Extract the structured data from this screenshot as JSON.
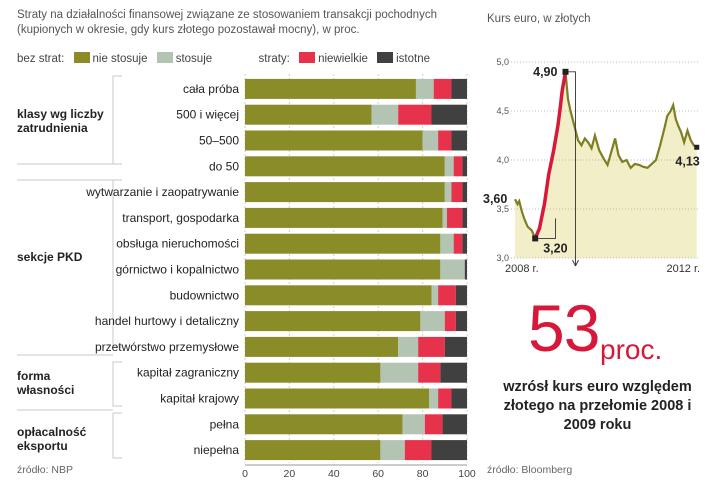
{
  "intro": "Straty na działalności finansowej związane ze stosowaniem transakcji pochodnych (kupionych w okresie, gdy kurs złotego pozostawał mocny), w proc.",
  "legend": {
    "no_loss_label": "bez strat:",
    "not_used": "nie stosuje",
    "used": "stosuje",
    "loss_label": "straty:",
    "small": "niewielkie",
    "significant": "istotne"
  },
  "colors": {
    "not_used": "#8a8c28",
    "used": "#b4c4b2",
    "small": "#e6324b",
    "significant": "#404040",
    "eur_line_green": "#7c7f22",
    "eur_line_red": "#d6193a",
    "eur_fill": "#ece7b0",
    "accent": "#d6193a"
  },
  "groups": [
    {
      "label": "klasy wg liczby zatrudnienia"
    },
    {
      "label": "sekcje PKD"
    },
    {
      "label": "forma własności"
    },
    {
      "label": "opłacalność eksportu"
    }
  ],
  "chart_data": [
    {
      "type": "bar",
      "stacked": true,
      "orientation": "horizontal",
      "title": "Straty na działalności finansowej związane ze stosowaniem transakcji pochodnych (kupionych w okresie, gdy kurs złotego pozostawał mocny), w proc.",
      "xlim": [
        0,
        100
      ],
      "xticks": [
        0,
        20,
        40,
        60,
        80,
        100
      ],
      "categories": [
        "cała próba",
        "500 i więcej",
        "50–500",
        "do 50",
        "wytwarzanie i zaopatrywanie",
        "transport, gospodarka",
        "obsługa nieruchomości",
        "górnictwo i kopalnictwo",
        "budownictwo",
        "handel hurtowy i detaliczny",
        "przetwórstwo przemysłowe",
        "kapitał zagraniczny",
        "kapitał krajowy",
        "pełna",
        "niepełna"
      ],
      "series": [
        {
          "name": "nie stosuje",
          "values": [
            77,
            57,
            80,
            90,
            90,
            89,
            88,
            88,
            84,
            79,
            69,
            61,
            83,
            71,
            61
          ]
        },
        {
          "name": "stosuje",
          "values": [
            8,
            12,
            7,
            4,
            3,
            2,
            6,
            11,
            3,
            11,
            9,
            17,
            4,
            10,
            11
          ]
        },
        {
          "name": "niewielkie",
          "values": [
            8,
            15,
            6,
            4,
            5,
            7,
            4,
            0,
            8,
            5,
            12,
            10,
            6,
            8,
            12
          ]
        },
        {
          "name": "istotne",
          "values": [
            7,
            16,
            7,
            2,
            2,
            2,
            2,
            1,
            5,
            5,
            10,
            12,
            7,
            11,
            16
          ]
        }
      ],
      "groups": [
        {
          "label": "klasy wg liczby zatrudnienia",
          "from": 0,
          "to": 3
        },
        {
          "label": "sekcje PKD",
          "from": 4,
          "to": 10
        },
        {
          "label": "forma własności",
          "from": 11,
          "to": 12
        },
        {
          "label": "opłacalność eksportu",
          "from": 13,
          "to": 14
        }
      ],
      "source": "źródło: NBP"
    },
    {
      "type": "line",
      "title": "Kurs euro, w złotych",
      "ylim": [
        3.0,
        5.0
      ],
      "yticks": [
        "3,0",
        "3,5",
        "4,0",
        "4,5",
        "5,0"
      ],
      "xticks": [
        "2008 r.",
        "2012 r."
      ],
      "x": [
        2008.0,
        2008.06,
        2008.1,
        2008.16,
        2008.22,
        2008.3,
        2008.4,
        2008.48,
        2008.58,
        2008.7,
        2008.8,
        2008.92,
        2009.02,
        2009.08,
        2009.12,
        2009.16,
        2009.2,
        2009.26,
        2009.32,
        2009.38,
        2009.44,
        2009.5,
        2009.58,
        2009.66,
        2009.74,
        2009.82,
        2009.9,
        2010.0,
        2010.1,
        2010.2,
        2010.3,
        2010.38,
        2010.46,
        2010.55,
        2010.65,
        2010.75,
        2010.85,
        2010.95,
        2011.05,
        2011.15,
        2011.25,
        2011.35,
        2011.45,
        2011.55,
        2011.62,
        2011.7,
        2011.76,
        2011.82,
        2011.88,
        2011.95,
        2012.02,
        2012.1,
        2012.18,
        2012.25,
        2012.32
      ],
      "y": [
        3.6,
        3.55,
        3.58,
        3.48,
        3.4,
        3.32,
        3.28,
        3.2,
        3.3,
        3.55,
        3.85,
        4.1,
        4.35,
        4.55,
        4.7,
        4.8,
        4.9,
        4.62,
        4.5,
        4.4,
        4.3,
        4.2,
        4.15,
        4.22,
        4.18,
        4.12,
        4.25,
        4.1,
        4.02,
        3.95,
        4.1,
        4.22,
        4.05,
        3.98,
        4.0,
        3.92,
        3.96,
        3.95,
        3.93,
        3.92,
        3.96,
        4.0,
        4.15,
        4.32,
        4.45,
        4.5,
        4.56,
        4.42,
        4.35,
        4.28,
        4.18,
        4.3,
        4.2,
        4.15,
        4.13
      ],
      "red_segment": {
        "from": 2008.48,
        "to": 2009.2
      },
      "labels": [
        {
          "text": "3,60",
          "value": 3.6
        },
        {
          "text": "3,20",
          "value": 3.2
        },
        {
          "text": "4,90",
          "value": 4.9
        },
        {
          "text": "4,13",
          "value": 4.13
        }
      ],
      "source": "źródło: Bloomberg"
    }
  ],
  "stat": {
    "number": "53",
    "unit": "proc.",
    "description": "wzrósł kurs euro względem złotego na przełomie 2008 i 2009 roku"
  }
}
